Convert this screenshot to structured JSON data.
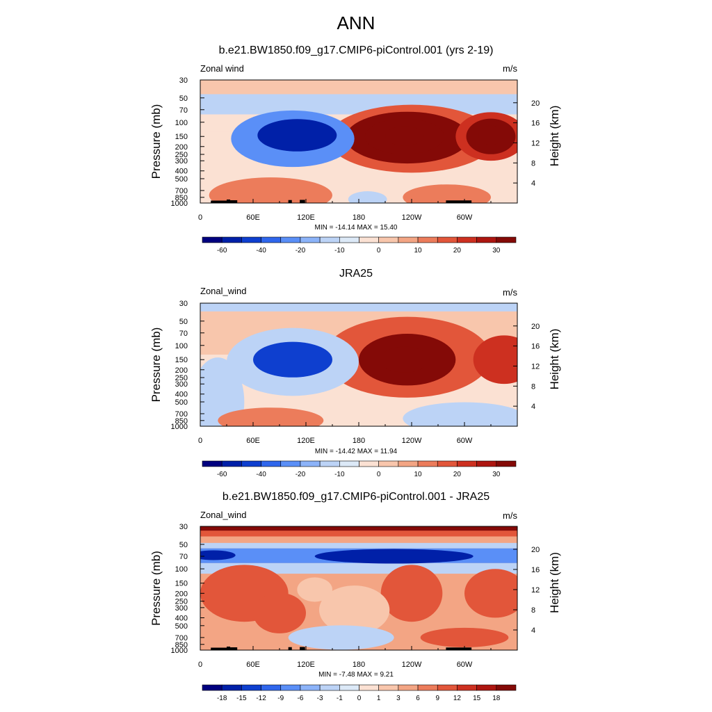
{
  "page_title": "ANN",
  "colors": {
    "abs_scale": [
      "#00007f",
      "#0020a8",
      "#0e3fcf",
      "#2f66ec",
      "#5a8ff7",
      "#8cb3f9",
      "#bcd3f6",
      "#dce9f7",
      "#fbe1d3",
      "#f8c6ac",
      "#f3a584",
      "#ec7c5b",
      "#e2563a",
      "#cd3020",
      "#ad1610",
      "#840a07"
    ],
    "diff_scale": [
      "#00007f",
      "#0020a8",
      "#0e3fcf",
      "#2f66ec",
      "#5a8ff7",
      "#8cb3f9",
      "#bcd3f6",
      "#dce9f7",
      "#fbe1d3",
      "#f8c6ac",
      "#f3a584",
      "#ec7c5b",
      "#e2563a",
      "#cd3020",
      "#ad1610",
      "#840a07"
    ],
    "topography": "#000000"
  },
  "chart_data": [
    {
      "type": "heatmap",
      "title": "b.e21.BW1850.f09_g17.CMIP6-piControl.001 (yrs 2-19)",
      "left_label": "Zonal wind",
      "units_label": "m/s",
      "ylabel": "Pressure (mb)",
      "ylabel_right": "Height (km)",
      "x_ticks": [
        "0",
        "60E",
        "120E",
        "180",
        "120W",
        "60W"
      ],
      "x_tick_lon": [
        0,
        60,
        120,
        180,
        240,
        300
      ],
      "xlim": [
        0,
        360
      ],
      "y_ticks": [
        "30",
        "50",
        "70",
        "100",
        "150",
        "200",
        "250",
        "300",
        "400",
        "500",
        "700",
        "850",
        "1000"
      ],
      "y_tick_p": [
        30,
        50,
        70,
        100,
        150,
        200,
        250,
        300,
        400,
        500,
        700,
        850,
        1000
      ],
      "ylim": [
        1000,
        30
      ],
      "y_scale": "log",
      "right_ticks": [
        "20",
        "16",
        "12",
        "8",
        "4"
      ],
      "right_tick_km": [
        20,
        16,
        12,
        8,
        4
      ],
      "min_max_text": "MIN = -14.14  MAX =  15.40",
      "colorbar_labels": [
        "-60",
        "-40",
        "-20",
        "-10",
        "0",
        "10",
        "20",
        "30"
      ],
      "colorbar_label_boxes": [
        1,
        3,
        5,
        7,
        9,
        11,
        13,
        15
      ],
      "field": {
        "background": 0,
        "bands": [
          {
            "p_top": 30,
            "p_bottom": 45,
            "value": 1
          },
          {
            "p_top": 45,
            "p_bottom": 80,
            "value": -2
          },
          {
            "p_top": 80,
            "p_bottom": 130,
            "value": 0
          },
          {
            "p_top": 400,
            "p_bottom": 1000,
            "value": 0
          }
        ],
        "blobs": [
          {
            "lon": 240,
            "p": 160,
            "rlon": 95,
            "rp_dec": 0.42,
            "value": 4
          },
          {
            "lon": 235,
            "p": 155,
            "rlon": 70,
            "rp_dec": 0.32,
            "value": 7
          },
          {
            "lon": 232,
            "p": 150,
            "rlon": 45,
            "rp_dec": 0.22,
            "value": 11
          },
          {
            "lon": 232,
            "p": 148,
            "rlon": 22,
            "rp_dec": 0.12,
            "value": 16
          },
          {
            "lon": 330,
            "p": 150,
            "rlon": 40,
            "rp_dec": 0.3,
            "value": 5
          },
          {
            "lon": 330,
            "p": 150,
            "rlon": 28,
            "rp_dec": 0.22,
            "value": 11
          },
          {
            "lon": 330,
            "p": 145,
            "rlon": 14,
            "rp_dec": 0.12,
            "value": 16
          },
          {
            "lon": 105,
            "p": 160,
            "rlon": 70,
            "rp_dec": 0.35,
            "value": -4
          },
          {
            "lon": 110,
            "p": 145,
            "rlon": 45,
            "rp_dec": 0.2,
            "value": -7
          },
          {
            "lon": 80,
            "p": 800,
            "rlon": 70,
            "rp_dec": 0.22,
            "value": 3
          },
          {
            "lon": 280,
            "p": 850,
            "rlon": 50,
            "rp_dec": 0.16,
            "value": 3
          },
          {
            "lon": 190,
            "p": 900,
            "rlon": 22,
            "rp_dec": 0.1,
            "value": -2
          }
        ]
      }
    },
    {
      "type": "heatmap",
      "title": "JRA25",
      "left_label": "Zonal_wind",
      "units_label": "m/s",
      "ylabel": "Pressure (mb)",
      "ylabel_right": "Height (km)",
      "x_ticks": [
        "0",
        "60E",
        "120E",
        "180",
        "120W",
        "60W"
      ],
      "x_tick_lon": [
        0,
        60,
        120,
        180,
        240,
        300
      ],
      "xlim": [
        0,
        360
      ],
      "y_ticks": [
        "30",
        "50",
        "70",
        "100",
        "150",
        "200",
        "250",
        "300",
        "400",
        "500",
        "700",
        "850",
        "1000"
      ],
      "y_tick_p": [
        30,
        50,
        70,
        100,
        150,
        200,
        250,
        300,
        400,
        500,
        700,
        850,
        1000
      ],
      "ylim": [
        1000,
        30
      ],
      "y_scale": "log",
      "right_ticks": [
        "20",
        "16",
        "12",
        "8",
        "4"
      ],
      "right_tick_km": [
        20,
        16,
        12,
        8,
        4
      ],
      "min_max_text": "MIN = -14.42  MAX =  11.94",
      "colorbar_labels": [
        "-60",
        "-40",
        "-20",
        "-10",
        "0",
        "10",
        "20",
        "30"
      ],
      "colorbar_label_boxes": [
        1,
        3,
        5,
        7,
        9,
        11,
        13,
        15
      ],
      "field": {
        "background": 0,
        "bands": [
          {
            "p_top": 30,
            "p_bottom": 38,
            "value": -2
          },
          {
            "p_top": 38,
            "p_bottom": 130,
            "value": 1
          },
          {
            "p_top": 400,
            "p_bottom": 1000,
            "value": 0
          }
        ],
        "blobs": [
          {
            "lon": 235,
            "p": 140,
            "rlon": 95,
            "rp_dec": 0.5,
            "value": 4
          },
          {
            "lon": 235,
            "p": 150,
            "rlon": 55,
            "rp_dec": 0.32,
            "value": 7
          },
          {
            "lon": 232,
            "p": 150,
            "rlon": 28,
            "rp_dec": 0.16,
            "value": 12
          },
          {
            "lon": 345,
            "p": 150,
            "rlon": 35,
            "rp_dec": 0.3,
            "value": 5
          },
          {
            "lon": 105,
            "p": 160,
            "rlon": 75,
            "rp_dec": 0.42,
            "value": -2
          },
          {
            "lon": 105,
            "p": 150,
            "rlon": 45,
            "rp_dec": 0.22,
            "value": -6
          },
          {
            "lon": 20,
            "p": 500,
            "rlon": 30,
            "rp_dec": 0.55,
            "value": -2
          },
          {
            "lon": 300,
            "p": 800,
            "rlon": 70,
            "rp_dec": 0.2,
            "value": -2
          },
          {
            "lon": 80,
            "p": 850,
            "rlon": 60,
            "rp_dec": 0.16,
            "value": 3
          }
        ]
      }
    },
    {
      "type": "heatmap",
      "title": "b.e21.BW1850.f09_g17.CMIP6-piControl.001 - JRA25",
      "left_label": "Zonal_wind",
      "units_label": "m/s",
      "ylabel": "Pressure (mb)",
      "ylabel_right": "Height (km)",
      "x_ticks": [
        "0",
        "60E",
        "120E",
        "180",
        "120W",
        "60W"
      ],
      "x_tick_lon": [
        0,
        60,
        120,
        180,
        240,
        300
      ],
      "xlim": [
        0,
        360
      ],
      "y_ticks": [
        "30",
        "50",
        "70",
        "100",
        "150",
        "200",
        "250",
        "300",
        "400",
        "500",
        "700",
        "850",
        "1000"
      ],
      "y_tick_p": [
        30,
        50,
        70,
        100,
        150,
        200,
        250,
        300,
        400,
        500,
        700,
        850,
        1000
      ],
      "ylim": [
        1000,
        30
      ],
      "y_scale": "log",
      "right_ticks": [
        "20",
        "16",
        "12",
        "8",
        "4"
      ],
      "right_tick_km": [
        20,
        16,
        12,
        8,
        4
      ],
      "min_max_text": "MIN =  -7.48  MAX =   9.21",
      "colorbar_labels": [
        "-18",
        "-15",
        "-12",
        "-9",
        "-6",
        "-3",
        "-1",
        "0",
        "1",
        "3",
        "6",
        "9",
        "12",
        "15",
        "18"
      ],
      "colorbar_label_boxes": [
        1,
        2,
        3,
        4,
        5,
        6,
        7,
        8,
        9,
        10,
        11,
        12,
        13,
        14,
        15
      ],
      "field": {
        "background": 2,
        "bands": [
          {
            "p_top": 30,
            "p_bottom": 34,
            "value": 7
          },
          {
            "p_top": 34,
            "p_bottom": 40,
            "value": 4
          },
          {
            "p_top": 40,
            "p_bottom": 48,
            "value": 2
          },
          {
            "p_top": 48,
            "p_bottom": 56,
            "value": -2
          },
          {
            "p_top": 56,
            "p_bottom": 85,
            "value": -4
          },
          {
            "p_top": 85,
            "p_bottom": 115,
            "value": -2
          },
          {
            "p_top": 115,
            "p_bottom": 140,
            "value": 2
          },
          {
            "p_top": 140,
            "p_bottom": 1000,
            "value": 2
          }
        ],
        "blobs": [
          {
            "lon": 220,
            "p": 70,
            "rlon": 90,
            "rp_dec": 0.09,
            "value": -7
          },
          {
            "lon": 15,
            "p": 68,
            "rlon": 25,
            "rp_dec": 0.06,
            "value": -7
          },
          {
            "lon": 50,
            "p": 200,
            "rlon": 50,
            "rp_dec": 0.35,
            "value": 4
          },
          {
            "lon": 240,
            "p": 200,
            "rlon": 35,
            "rp_dec": 0.35,
            "value": 4
          },
          {
            "lon": 335,
            "p": 200,
            "rlon": 35,
            "rp_dec": 0.3,
            "value": 4
          },
          {
            "lon": 130,
            "p": 180,
            "rlon": 20,
            "rp_dec": 0.15,
            "value": 1
          },
          {
            "lon": 175,
            "p": 320,
            "rlon": 40,
            "rp_dec": 0.3,
            "value": 1
          },
          {
            "lon": 90,
            "p": 350,
            "rlon": 30,
            "rp_dec": 0.25,
            "value": 4
          },
          {
            "lon": 160,
            "p": 700,
            "rlon": 60,
            "rp_dec": 0.15,
            "value": -2
          },
          {
            "lon": 300,
            "p": 700,
            "rlon": 50,
            "rp_dec": 0.12,
            "value": 4
          }
        ]
      }
    }
  ]
}
